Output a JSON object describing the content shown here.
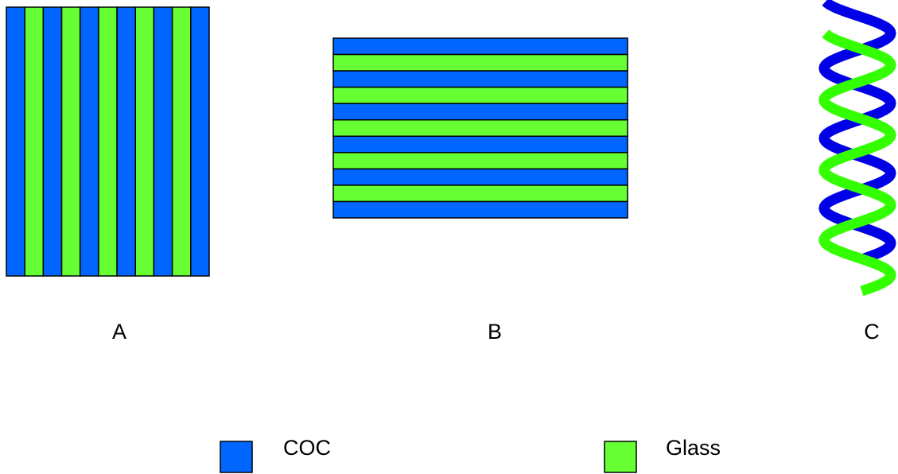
{
  "colors": {
    "coc": "#0066FF",
    "glass": "#66FF33",
    "helix_coc": "#0000E6",
    "helix_glass": "#33FF00",
    "stroke": "#000000"
  },
  "panels": {
    "a": {
      "label": "A",
      "stripe_count": 11,
      "orientation": "vertical",
      "first_material": "coc"
    },
    "b": {
      "label": "B",
      "stripe_count": 11,
      "orientation": "horizontal",
      "first_material": "coc"
    },
    "c": {
      "label": "C",
      "strands": [
        "coc",
        "glass"
      ]
    }
  },
  "legend": {
    "items": [
      {
        "key": "coc",
        "label": "COC"
      },
      {
        "key": "glass",
        "label": "Glass"
      }
    ]
  }
}
